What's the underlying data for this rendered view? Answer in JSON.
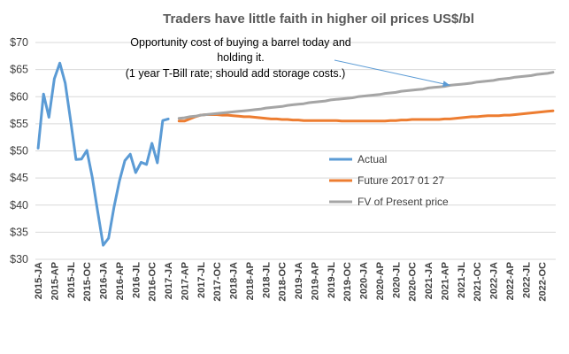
{
  "chart_data": {
    "type": "line",
    "title": "Traders have little faith in higher oil prices US$/bl",
    "xlabel": "",
    "ylabel": "",
    "ylim": [
      30,
      70
    ],
    "yticks": [
      "$30",
      "$35",
      "$40",
      "$45",
      "$50",
      "$55",
      "$60",
      "$65",
      "$70"
    ],
    "grid": "horizontal",
    "legend_position": "center-right",
    "x_tick_labels": [
      "2015-JA",
      "2015-AP",
      "2015-JL",
      "2015-OC",
      "2016-JA",
      "2016-AP",
      "2016-JL",
      "2016-OC",
      "2017-JA",
      "2017-AP",
      "2017-JL",
      "2017-OC",
      "2018-JA",
      "2018-AP",
      "2018-JL",
      "2018-OC",
      "2019-JA",
      "2019-AP",
      "2019-JL",
      "2019-OC",
      "2020-JA",
      "2020-AP",
      "2020-JL",
      "2020-OC",
      "2021-JA",
      "2021-AP",
      "2021-JL",
      "2021-OC",
      "2022-JA",
      "2022-AP",
      "2022-JL",
      "2022-OC"
    ],
    "x_months": [
      "2015-01",
      "2015-02",
      "2015-03",
      "2015-04",
      "2015-05",
      "2015-06",
      "2015-07",
      "2015-08",
      "2015-09",
      "2015-10",
      "2015-11",
      "2015-12",
      "2016-01",
      "2016-02",
      "2016-03",
      "2016-04",
      "2016-05",
      "2016-06",
      "2016-07",
      "2016-08",
      "2016-09",
      "2016-10",
      "2016-11",
      "2016-12",
      "2017-01",
      "2017-02",
      "2017-03",
      "2017-04",
      "2017-05",
      "2017-06",
      "2017-07",
      "2017-08",
      "2017-09",
      "2017-10",
      "2017-11",
      "2017-12",
      "2018-01",
      "2018-02",
      "2018-03",
      "2018-04",
      "2018-05",
      "2018-06",
      "2018-07",
      "2018-08",
      "2018-09",
      "2018-10",
      "2018-11",
      "2018-12",
      "2019-01",
      "2019-02",
      "2019-03",
      "2019-04",
      "2019-05",
      "2019-06",
      "2019-07",
      "2019-08",
      "2019-09",
      "2019-10",
      "2019-11",
      "2019-12",
      "2020-01",
      "2020-02",
      "2020-03",
      "2020-04",
      "2020-05",
      "2020-06",
      "2020-07",
      "2020-08",
      "2020-09",
      "2020-10",
      "2020-11",
      "2020-12",
      "2021-01",
      "2021-02",
      "2021-03",
      "2021-04",
      "2021-05",
      "2021-06",
      "2021-07",
      "2021-08",
      "2021-09",
      "2021-10",
      "2021-11",
      "2021-12",
      "2022-01",
      "2022-02",
      "2022-03",
      "2022-04",
      "2022-05",
      "2022-06",
      "2022-07",
      "2022-08",
      "2022-09",
      "2022-10",
      "2022-11",
      "2022-12"
    ],
    "series": [
      {
        "name": "Actual",
        "color": "#5B9BD5",
        "values": [
          50.5,
          60.5,
          56.2,
          63.3,
          66.2,
          62.5,
          55.6,
          48.4,
          48.5,
          50.1,
          45.1,
          38.8,
          32.6,
          33.9,
          39.6,
          44.4,
          48.2,
          49.4,
          46.0,
          47.9,
          47.5,
          51.4,
          47.8,
          55.6,
          55.9,
          null,
          null,
          null,
          null,
          null,
          null,
          null,
          null,
          null,
          null,
          null,
          null,
          null,
          null,
          null,
          null,
          null,
          null,
          null,
          null,
          null,
          null,
          null,
          null,
          null,
          null,
          null,
          null,
          null,
          null,
          null,
          null,
          null,
          null,
          null,
          null,
          null,
          null,
          null,
          null,
          null,
          null,
          null,
          null,
          null,
          null,
          null,
          null,
          null,
          null,
          null,
          null,
          null,
          null,
          null,
          null,
          null,
          null,
          null,
          null,
          null,
          null,
          null,
          null,
          null,
          null,
          null,
          null,
          null,
          null,
          null
        ]
      },
      {
        "name": "Future 2017 01 27",
        "color": "#ED7D31",
        "values": [
          null,
          null,
          null,
          null,
          null,
          null,
          null,
          null,
          null,
          null,
          null,
          null,
          null,
          null,
          null,
          null,
          null,
          null,
          null,
          null,
          null,
          null,
          null,
          null,
          null,
          null,
          55.5,
          55.5,
          55.9,
          56.3,
          56.6,
          56.7,
          56.7,
          56.7,
          56.6,
          56.6,
          56.5,
          56.4,
          56.3,
          56.3,
          56.2,
          56.1,
          56.0,
          55.9,
          55.9,
          55.8,
          55.8,
          55.7,
          55.7,
          55.6,
          55.6,
          55.6,
          55.6,
          55.6,
          55.6,
          55.6,
          55.5,
          55.5,
          55.5,
          55.5,
          55.5,
          55.5,
          55.5,
          55.5,
          55.5,
          55.6,
          55.6,
          55.7,
          55.7,
          55.8,
          55.8,
          55.8,
          55.8,
          55.8,
          55.8,
          55.9,
          55.9,
          56.0,
          56.1,
          56.2,
          56.3,
          56.3,
          56.4,
          56.5,
          56.5,
          56.5,
          56.6,
          56.6,
          56.7,
          56.8,
          56.9,
          57.0,
          57.1,
          57.2,
          57.3,
          57.4
        ]
      },
      {
        "name": "FV of Present price",
        "color": "#A5A5A5",
        "values": [
          null,
          null,
          null,
          null,
          null,
          null,
          null,
          null,
          null,
          null,
          null,
          null,
          null,
          null,
          null,
          null,
          null,
          null,
          null,
          null,
          null,
          null,
          null,
          null,
          null,
          null,
          56.0,
          56.1,
          56.3,
          56.4,
          56.6,
          56.7,
          56.8,
          56.9,
          57.0,
          57.1,
          57.2,
          57.3,
          57.4,
          57.5,
          57.6,
          57.7,
          57.9,
          58.0,
          58.1,
          58.2,
          58.4,
          58.5,
          58.6,
          58.7,
          58.9,
          59.0,
          59.1,
          59.2,
          59.4,
          59.5,
          59.6,
          59.7,
          59.8,
          60.0,
          60.1,
          60.2,
          60.3,
          60.4,
          60.6,
          60.7,
          60.8,
          61.0,
          61.1,
          61.2,
          61.3,
          61.4,
          61.6,
          61.7,
          61.8,
          61.9,
          62.1,
          62.2,
          62.3,
          62.4,
          62.5,
          62.7,
          62.8,
          62.9,
          63.0,
          63.2,
          63.3,
          63.4,
          63.6,
          63.7,
          63.8,
          63.9,
          64.1,
          64.2,
          64.3,
          64.5
        ]
      }
    ],
    "annotation": {
      "lines": [
        "Opportunity cost of buying a barrel today and",
        "holding it.",
        "(1 year T-Bill rate; should add storage costs.)"
      ],
      "arrow_target_month": "2021-05",
      "arrow_target_series": "FV of Present price",
      "arrow_color": "#5B9BD5"
    }
  }
}
